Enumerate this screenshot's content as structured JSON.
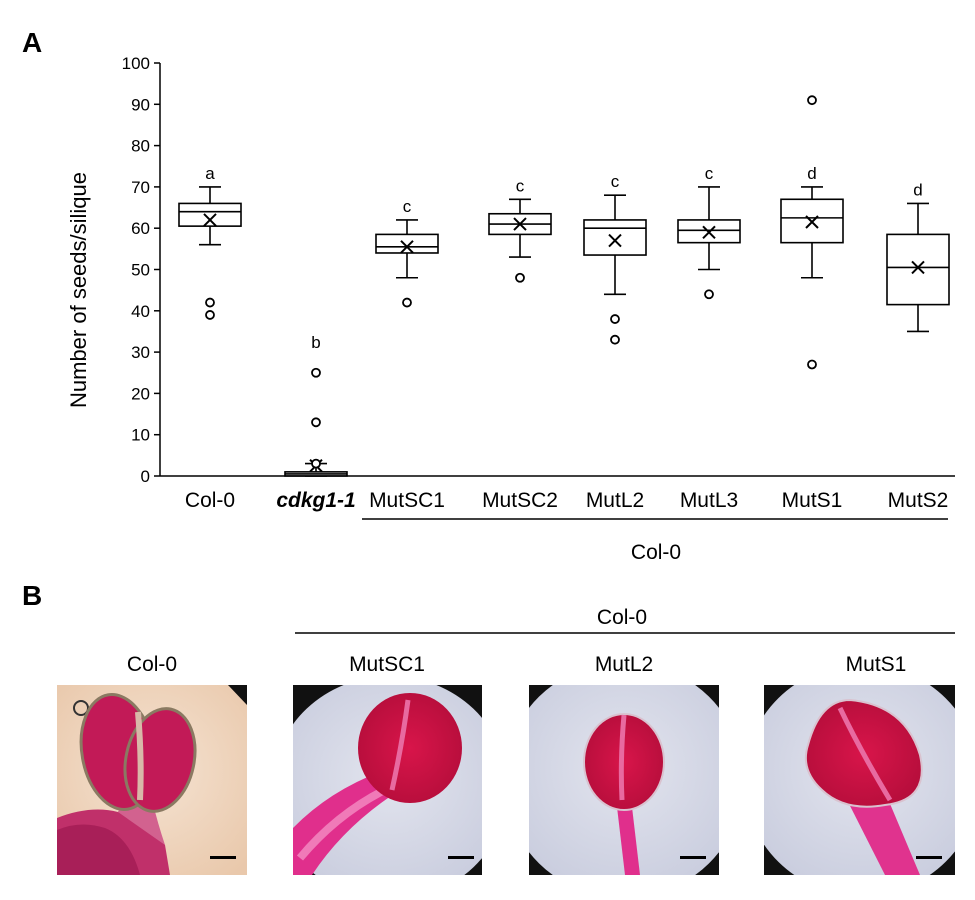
{
  "panel_labels": {
    "a": "A",
    "b": "B"
  },
  "chart_data": {
    "type": "box",
    "ylabel": "Number of seeds/silique",
    "ylim": [
      0,
      100
    ],
    "yticks": [
      0,
      10,
      20,
      30,
      40,
      50,
      60,
      70,
      80,
      90,
      100
    ],
    "yticklabels": [
      "0",
      "10",
      "20",
      "30",
      "40",
      "50",
      "60",
      "70",
      "80",
      "90",
      "100"
    ],
    "group_label": "Col-0",
    "categories": [
      "Col-0",
      "cdkg1-1",
      "MutSC1",
      "MutSC2",
      "MutL2",
      "MutL3",
      "MutS1",
      "MutS2"
    ],
    "boxes": [
      {
        "category": "Col-0",
        "whisker_low": 56,
        "q1": 60.5,
        "median": 64,
        "q3": 66,
        "whisker_high": 70,
        "mean": 62,
        "outliers": [
          42,
          39
        ],
        "letter": "a"
      },
      {
        "category": "cdkg1-1",
        "whisker_low": 0,
        "q1": 0,
        "median": 0.5,
        "q3": 1,
        "whisker_high": 3,
        "mean": 2.5,
        "outliers": [
          25,
          13,
          3
        ],
        "letter": "b"
      },
      {
        "category": "MutSC1",
        "whisker_low": 48,
        "q1": 54,
        "median": 55.5,
        "q3": 58.5,
        "whisker_high": 62,
        "mean": 55.5,
        "outliers": [
          42
        ],
        "letter": "c"
      },
      {
        "category": "MutSC2",
        "whisker_low": 53,
        "q1": 58.5,
        "median": 61,
        "q3": 63.5,
        "whisker_high": 67,
        "mean": 61,
        "outliers": [
          48
        ],
        "letter": "c"
      },
      {
        "category": "MutL2",
        "whisker_low": 44,
        "q1": 53.5,
        "median": 60,
        "q3": 62,
        "whisker_high": 68,
        "mean": 57,
        "outliers": [
          38,
          33
        ],
        "letter": "c"
      },
      {
        "category": "MutL3",
        "whisker_low": 50,
        "q1": 56.5,
        "median": 59.5,
        "q3": 62,
        "whisker_high": 70,
        "mean": 59,
        "outliers": [
          44
        ],
        "letter": "c"
      },
      {
        "category": "MutS1",
        "whisker_low": 48,
        "q1": 56.5,
        "median": 62.5,
        "q3": 67,
        "whisker_high": 70,
        "mean": 61.5,
        "outliers": [
          91,
          27
        ],
        "letter": "d"
      },
      {
        "category": "MutS2",
        "whisker_low": 35,
        "q1": 41.5,
        "median": 50.5,
        "q3": 58.5,
        "whisker_high": 66,
        "mean": 50.5,
        "outliers": [],
        "letter": "d"
      }
    ]
  },
  "panel_b": {
    "group_label": "Col-0",
    "images": [
      {
        "label": "Col-0",
        "style": "col0"
      },
      {
        "label": "MutSC1",
        "style": "mutsc1"
      },
      {
        "label": "MutL2",
        "style": "mutl2"
      },
      {
        "label": "MutS1",
        "style": "muts1"
      }
    ]
  }
}
